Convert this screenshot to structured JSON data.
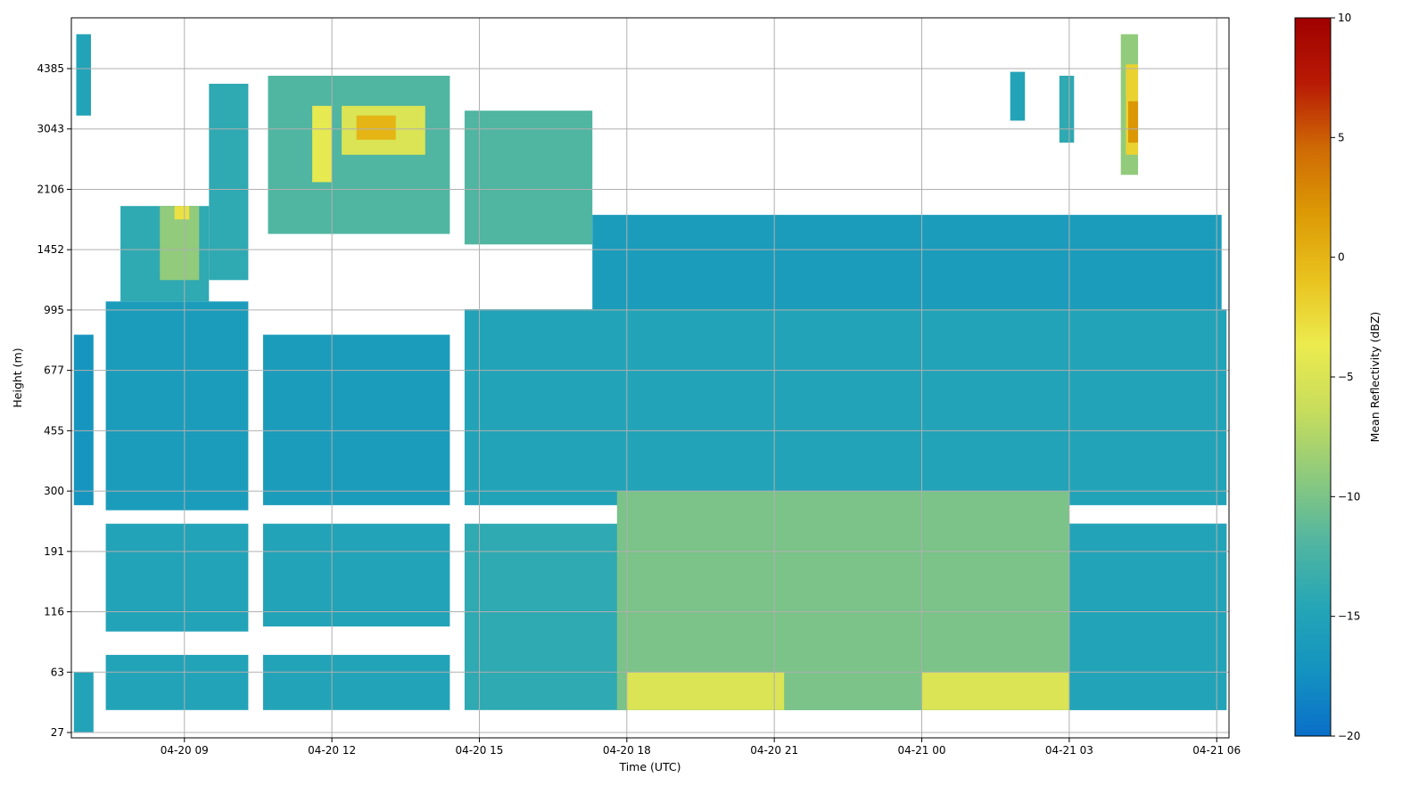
{
  "chart_data": {
    "type": "heatmap",
    "title": "",
    "xlabel": "Time (UTC)",
    "ylabel": "Height (m)",
    "x_ticks": [
      {
        "label": "04-20 09",
        "hour": 9
      },
      {
        "label": "04-20 12",
        "hour": 12
      },
      {
        "label": "04-20 15",
        "hour": 15
      },
      {
        "label": "04-20 18",
        "hour": 18
      },
      {
        "label": "04-20 21",
        "hour": 21
      },
      {
        "label": "04-21 00",
        "hour": 24
      },
      {
        "label": "04-21 03",
        "hour": 27
      },
      {
        "label": "04-21 06",
        "hour": 30
      }
    ],
    "y_ticks": [
      27,
      63,
      116,
      191,
      300,
      455,
      677,
      995,
      1452,
      2106,
      3043,
      4385
    ],
    "xlim_hours": [
      6.7,
      30.25
    ],
    "ylim_m": [
      27,
      6500
    ],
    "y_scale": "nonlinear (levels as plotted)",
    "grid": true,
    "colorbar": {
      "label": "Mean Reflectivity (dBZ)",
      "min": -20,
      "max": 10,
      "ticks": [
        10,
        5,
        0,
        -5,
        -10,
        -15,
        -20
      ],
      "colormap": "blue-teal-green-yellow-orange-red",
      "colors": [
        "#0a6fc9",
        "#1493c0",
        "#26a6b6",
        "#53b6a0",
        "#8fca7c",
        "#c8dd5c",
        "#eceb4e",
        "#e9c21e",
        "#dc9a05",
        "#cf6a05",
        "#b81a05",
        "#a00000"
      ]
    },
    "regions": [
      {
        "t": [
          6.75,
          7.15
        ],
        "h": [
          27,
          63
        ],
        "dbz": -15
      },
      {
        "t": [
          6.75,
          7.15
        ],
        "h": [
          270,
          850
        ],
        "dbz": -17
      },
      {
        "t": [
          6.8,
          7.1
        ],
        "h": [
          3300,
          5400
        ],
        "dbz": -15
      },
      {
        "t": [
          7.4,
          10.3
        ],
        "h": [
          37,
          75
        ],
        "dbz": -15
      },
      {
        "t": [
          7.4,
          10.3
        ],
        "h": [
          95,
          235
        ],
        "dbz": -15
      },
      {
        "t": [
          7.4,
          10.3
        ],
        "h": [
          260,
          1050
        ],
        "dbz": -16
      },
      {
        "t": [
          7.7,
          9.5
        ],
        "h": [
          1050,
          1900
        ],
        "dbz": -14
      },
      {
        "t": [
          8.5,
          9.3
        ],
        "h": [
          1200,
          1900
        ],
        "dbz": -9
      },
      {
        "t": [
          8.8,
          9.1
        ],
        "h": [
          1750,
          1900
        ],
        "dbz": -3
      },
      {
        "t": [
          9.5,
          10.3
        ],
        "h": [
          1200,
          4000
        ],
        "dbz": -14
      },
      {
        "t": [
          10.6,
          14.4
        ],
        "h": [
          270,
          850
        ],
        "dbz": -16
      },
      {
        "t": [
          10.6,
          14.4
        ],
        "h": [
          37,
          75
        ],
        "dbz": -15
      },
      {
        "t": [
          10.6,
          14.4
        ],
        "h": [
          100,
          235
        ],
        "dbz": -15
      },
      {
        "t": [
          10.7,
          14.4
        ],
        "h": [
          1600,
          4200
        ],
        "dbz": -12
      },
      {
        "t": [
          11.6,
          12.0
        ],
        "h": [
          2200,
          3500
        ],
        "dbz": -4
      },
      {
        "t": [
          12.2,
          13.9
        ],
        "h": [
          2600,
          3500
        ],
        "dbz": -5
      },
      {
        "t": [
          12.5,
          13.3
        ],
        "h": [
          2850,
          3300
        ],
        "dbz": 0
      },
      {
        "t": [
          14.7,
          30.2
        ],
        "h": [
          270,
          1000
        ],
        "dbz": -15
      },
      {
        "t": [
          14.7,
          30.2
        ],
        "h": [
          37,
          235
        ],
        "dbz": -14
      },
      {
        "t": [
          14.7,
          17.3
        ],
        "h": [
          1500,
          3400
        ],
        "dbz": -12
      },
      {
        "t": [
          17.3,
          30.1
        ],
        "h": [
          1000,
          1800
        ],
        "dbz": -16
      },
      {
        "t": [
          17.8,
          27.0
        ],
        "h": [
          37,
          300
        ],
        "dbz": -10
      },
      {
        "t": [
          18.0,
          21.2
        ],
        "h": [
          37,
          63
        ],
        "dbz": -5
      },
      {
        "t": [
          24.0,
          27.0
        ],
        "h": [
          37,
          63
        ],
        "dbz": -5
      },
      {
        "t": [
          27.0,
          30.2
        ],
        "h": [
          37,
          235
        ],
        "dbz": -15
      },
      {
        "t": [
          28.05,
          28.4
        ],
        "h": [
          2300,
          5400
        ],
        "dbz": -9
      },
      {
        "t": [
          28.15,
          28.4
        ],
        "h": [
          2600,
          4500
        ],
        "dbz": -2
      },
      {
        "t": [
          28.2,
          28.4
        ],
        "h": [
          2800,
          3600
        ],
        "dbz": 2
      },
      {
        "t": [
          26.8,
          27.1
        ],
        "h": [
          2800,
          4200
        ],
        "dbz": -14
      },
      {
        "t": [
          25.8,
          26.1
        ],
        "h": [
          3200,
          4300
        ],
        "dbz": -15
      }
    ]
  }
}
